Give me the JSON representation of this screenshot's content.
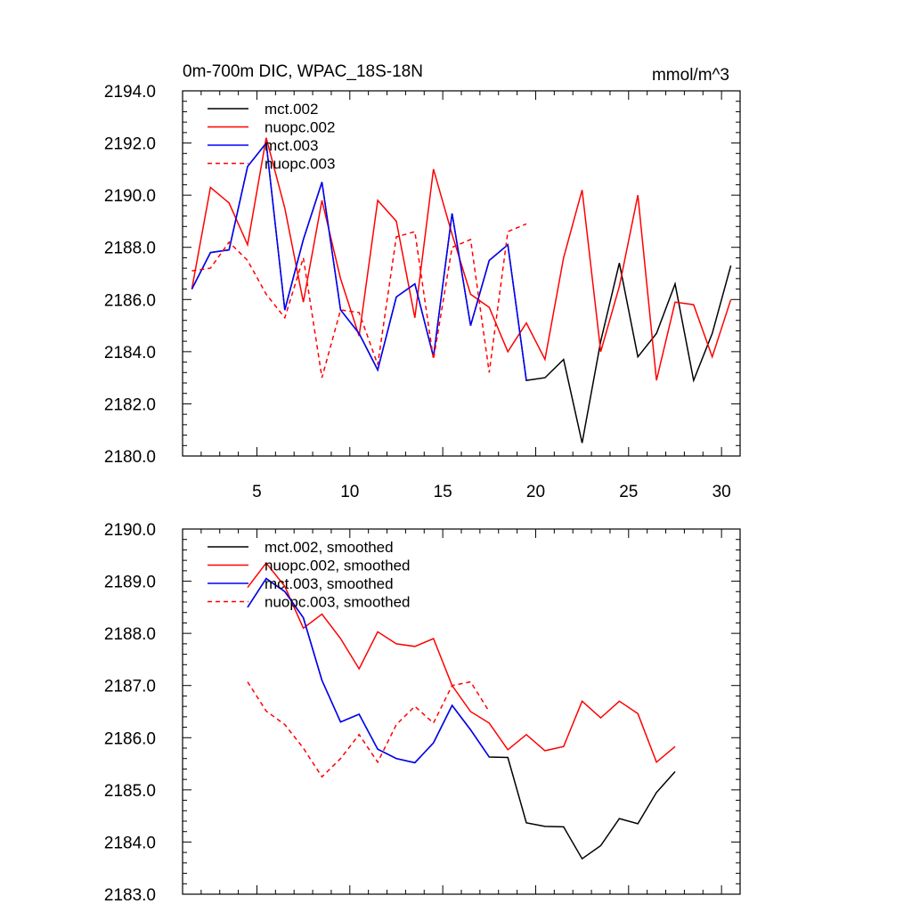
{
  "chart_data": [
    {
      "type": "line",
      "title": "0m-700m DIC, WPAC_18S-18N",
      "units": "mmol/m^3",
      "xlabel": "",
      "ylabel": "",
      "xlim": [
        1,
        31
      ],
      "ylim": [
        2180,
        2194
      ],
      "xticks": [
        5,
        10,
        15,
        20,
        25,
        30
      ],
      "xtick_labels": [
        "5",
        "10",
        "15",
        "20",
        "25",
        "30"
      ],
      "yticks": [
        2180,
        2182,
        2184,
        2186,
        2188,
        2190,
        2192,
        2194
      ],
      "ytick_labels": [
        "2180.0",
        "2182.0",
        "2184.0",
        "2186.0",
        "2188.0",
        "2190.0",
        "2192.0",
        "2194.0"
      ],
      "legend_position": "top-left",
      "series": [
        {
          "name": "mct.002",
          "color": "#000000",
          "dash": "solid",
          "x": [
            1.5,
            2.5,
            3.5,
            4.5,
            5.5,
            6.5,
            7.5,
            8.5,
            9.5,
            10.5,
            11.5,
            12.5,
            13.5,
            14.5,
            15.5,
            16.5,
            17.5,
            18.5,
            19.5,
            20.5,
            21.5,
            22.5,
            23.5,
            24.5,
            25.5,
            26.5,
            27.5,
            28.5,
            29.5,
            30.5
          ],
          "values": [
            2186.4,
            2187.8,
            2187.9,
            2191.1,
            2192.0,
            2185.6,
            2188.3,
            2190.5,
            2185.6,
            2184.7,
            2183.3,
            2186.1,
            2186.6,
            2183.8,
            2189.3,
            2185.0,
            2187.5,
            2188.1,
            2182.9,
            2183.0,
            2183.7,
            2180.5,
            2184.4,
            2187.4,
            2183.8,
            2184.7,
            2186.6,
            2182.9,
            2184.7,
            2187.3
          ]
        },
        {
          "name": "nuopc.002",
          "color": "#ff0000",
          "dash": "solid",
          "x": [
            1.5,
            2.5,
            3.5,
            4.5,
            5.5,
            6.5,
            7.5,
            8.5,
            9.5,
            10.5,
            11.5,
            12.5,
            13.5,
            14.5,
            15.5,
            16.5,
            17.5,
            18.5,
            19.5,
            20.5,
            21.5,
            22.5,
            23.5,
            24.5,
            25.5,
            26.5,
            27.5,
            28.5,
            29.5,
            30.5
          ],
          "values": [
            2186.4,
            2190.3,
            2189.7,
            2188.1,
            2192.2,
            2189.5,
            2185.9,
            2189.8,
            2186.8,
            2184.6,
            2189.8,
            2189.0,
            2185.3,
            2191.0,
            2188.5,
            2186.2,
            2185.7,
            2184.0,
            2185.1,
            2183.7,
            2187.6,
            2190.2,
            2184.0,
            2186.5,
            2190.0,
            2182.9,
            2185.9,
            2185.8,
            2183.8,
            2186.0
          ]
        },
        {
          "name": "mct.003",
          "color": "#0000ff",
          "dash": "solid",
          "x": [
            1.5,
            2.5,
            3.5,
            4.5,
            5.5,
            6.5,
            7.5,
            8.5,
            9.5,
            10.5,
            11.5,
            12.5,
            13.5,
            14.5,
            15.5,
            16.5,
            17.5,
            18.5,
            19.5
          ],
          "values": [
            2186.4,
            2187.8,
            2187.9,
            2191.1,
            2192.0,
            2185.6,
            2188.3,
            2190.5,
            2185.6,
            2184.7,
            2183.3,
            2186.1,
            2186.6,
            2183.8,
            2189.3,
            2185.0,
            2187.5,
            2188.1,
            2182.9
          ]
        },
        {
          "name": "nuopc.003",
          "color": "#ff0000",
          "dash": "dashed",
          "x": [
            1.5,
            2.5,
            3.5,
            4.5,
            5.5,
            6.5,
            7.5,
            8.5,
            9.5,
            10.5,
            11.5,
            12.5,
            13.5,
            14.5,
            15.5,
            16.5,
            17.5,
            18.5,
            19.5
          ],
          "values": [
            2187.1,
            2187.2,
            2188.2,
            2187.5,
            2186.2,
            2185.3,
            2187.6,
            2183.0,
            2185.6,
            2185.5,
            2183.5,
            2188.4,
            2188.6,
            2183.7,
            2188.0,
            2188.3,
            2183.2,
            2188.6,
            2188.9
          ]
        }
      ]
    },
    {
      "type": "line",
      "title": "",
      "xlabel": "",
      "ylabel": "",
      "xlim": [
        1,
        31
      ],
      "ylim": [
        2183,
        2190
      ],
      "xticks": [
        5,
        10,
        15,
        20,
        25,
        30
      ],
      "xtick_labels": [],
      "yticks": [
        2183,
        2184,
        2185,
        2186,
        2187,
        2188,
        2189,
        2190
      ],
      "ytick_labels": [
        "2183.0",
        "2184.0",
        "2185.0",
        "2186.0",
        "2187.0",
        "2188.0",
        "2189.0",
        "2190.0"
      ],
      "legend_position": "top-left",
      "series": [
        {
          "name": "mct.002, smoothed",
          "color": "#000000",
          "dash": "solid",
          "x": [
            4.5,
            5.5,
            6.5,
            7.5,
            8.5,
            9.5,
            10.5,
            11.5,
            12.5,
            13.5,
            14.5,
            15.5,
            16.5,
            17.5,
            18.5,
            19.5,
            20.5,
            21.5,
            22.5,
            23.5,
            24.5,
            25.5,
            26.5,
            27.5
          ],
          "values": [
            2188.5,
            2189.05,
            2188.8,
            2188.3,
            2187.1,
            2186.3,
            2186.45,
            2185.78,
            2185.6,
            2185.52,
            2185.9,
            2186.62,
            2186.15,
            2185.63,
            2185.62,
            2184.37,
            2184.3,
            2184.29,
            2183.68,
            2183.93,
            2184.45,
            2184.35,
            2184.95,
            2185.35
          ]
        },
        {
          "name": "nuopc.002, smoothed",
          "color": "#ff0000",
          "dash": "solid",
          "x": [
            4.5,
            5.5,
            6.5,
            7.5,
            8.5,
            9.5,
            10.5,
            11.5,
            12.5,
            13.5,
            14.5,
            15.5,
            16.5,
            17.5,
            18.5,
            19.5,
            20.5,
            21.5,
            22.5,
            23.5,
            24.5,
            25.5,
            26.5,
            27.5
          ],
          "values": [
            2188.88,
            2189.35,
            2188.9,
            2188.1,
            2188.37,
            2187.9,
            2187.32,
            2188.03,
            2187.8,
            2187.75,
            2187.9,
            2187.0,
            2186.5,
            2186.28,
            2185.77,
            2186.06,
            2185.75,
            2185.83,
            2186.7,
            2186.38,
            2186.7,
            2186.46,
            2185.53,
            2185.83
          ]
        },
        {
          "name": "mct.003, smoothed",
          "color": "#0000ff",
          "dash": "solid",
          "x": [
            4.5,
            5.5,
            6.5,
            7.5,
            8.5,
            9.5,
            10.5,
            11.5,
            12.5,
            13.5,
            14.5,
            15.5,
            16.5,
            17.5
          ],
          "values": [
            2188.5,
            2189.05,
            2188.8,
            2188.3,
            2187.1,
            2186.3,
            2186.45,
            2185.78,
            2185.6,
            2185.52,
            2185.9,
            2186.62,
            2186.15,
            2185.63
          ]
        },
        {
          "name": "nuopc.003, smoothed",
          "color": "#ff0000",
          "dash": "dashed",
          "x": [
            4.5,
            5.5,
            6.5,
            7.5,
            8.5,
            9.5,
            10.5,
            11.5,
            12.5,
            13.5,
            14.5,
            15.5,
            16.5,
            17.5
          ],
          "values": [
            2187.07,
            2186.51,
            2186.25,
            2185.8,
            2185.25,
            2185.6,
            2186.06,
            2185.53,
            2186.25,
            2186.6,
            2186.28,
            2187.0,
            2187.07,
            2186.5
          ]
        }
      ]
    }
  ]
}
